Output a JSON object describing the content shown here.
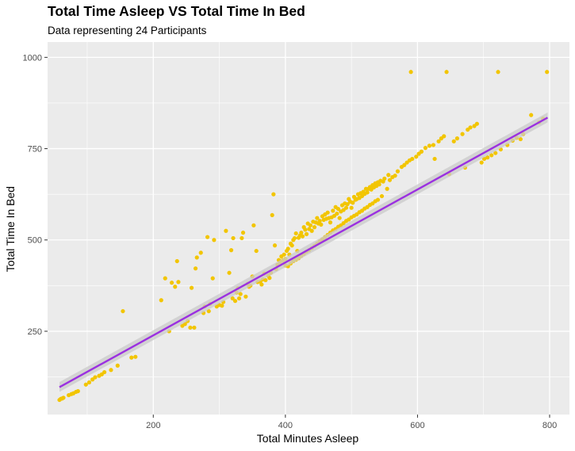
{
  "chart_data": {
    "type": "scatter",
    "title": "Total Time Asleep VS Total Time In Bed",
    "subtitle": "Data representing 24 Participants",
    "xlabel": "Total Minutes Asleep",
    "ylabel": "Total Time In Bed",
    "xlim": [
      40,
      830
    ],
    "ylim": [
      22,
      1042
    ],
    "x_ticks": [
      200,
      400,
      600,
      800
    ],
    "y_ticks": [
      250,
      500,
      750,
      1000
    ],
    "x_tick_labels": [
      "200",
      "400",
      "600",
      "800"
    ],
    "y_tick_labels": [
      "250",
      "500",
      "750",
      "1000"
    ],
    "grid": true,
    "legend": "none",
    "colors": {
      "panel": "#ebebeb",
      "grid": "#ffffff",
      "point": "#f2c500",
      "trend_line": "#9b30e0",
      "confidence_band": "#c9c9c9"
    },
    "trend_line": {
      "x": [
        58,
        797
      ],
      "y": [
        97,
        835
      ]
    },
    "confidence_band": {
      "x": [
        58,
        797
      ],
      "y_lower": [
        84,
        822
      ],
      "y_upper": [
        111,
        849
      ]
    },
    "points": [
      [
        58,
        62
      ],
      [
        60,
        65
      ],
      [
        62,
        66
      ],
      [
        64,
        68
      ],
      [
        72,
        75
      ],
      [
        76,
        78
      ],
      [
        79,
        80
      ],
      [
        83,
        84
      ],
      [
        86,
        86
      ],
      [
        98,
        104
      ],
      [
        103,
        110
      ],
      [
        108,
        118
      ],
      [
        112,
        124
      ],
      [
        118,
        128
      ],
      [
        122,
        132
      ],
      [
        126,
        138
      ],
      [
        136,
        144
      ],
      [
        146,
        156
      ],
      [
        154,
        305
      ],
      [
        167,
        178
      ],
      [
        173,
        180
      ],
      [
        212,
        335
      ],
      [
        218,
        395
      ],
      [
        224,
        250
      ],
      [
        228,
        383
      ],
      [
        233,
        372
      ],
      [
        236,
        442
      ],
      [
        238,
        385
      ],
      [
        244,
        265
      ],
      [
        248,
        270
      ],
      [
        252,
        278
      ],
      [
        256,
        260
      ],
      [
        258,
        369
      ],
      [
        262,
        260
      ],
      [
        264,
        422
      ],
      [
        266,
        452
      ],
      [
        272,
        465
      ],
      [
        276,
        300
      ],
      [
        278,
        318
      ],
      [
        282,
        508
      ],
      [
        284,
        305
      ],
      [
        286,
        325
      ],
      [
        290,
        395
      ],
      [
        292,
        500
      ],
      [
        296,
        318
      ],
      [
        300,
        322
      ],
      [
        304,
        320
      ],
      [
        306,
        330
      ],
      [
        310,
        525
      ],
      [
        315,
        410
      ],
      [
        318,
        472
      ],
      [
        320,
        340
      ],
      [
        321,
        505
      ],
      [
        324,
        333
      ],
      [
        326,
        356
      ],
      [
        328,
        368
      ],
      [
        330,
        340
      ],
      [
        332,
        352
      ],
      [
        334,
        505
      ],
      [
        336,
        520
      ],
      [
        340,
        345
      ],
      [
        343,
        380
      ],
      [
        345,
        372
      ],
      [
        347,
        375
      ],
      [
        350,
        400
      ],
      [
        352,
        540
      ],
      [
        356,
        470
      ],
      [
        358,
        385
      ],
      [
        362,
        386
      ],
      [
        364,
        378
      ],
      [
        366,
        392
      ],
      [
        368,
        408
      ],
      [
        370,
        390
      ],
      [
        374,
        402
      ],
      [
        376,
        396
      ],
      [
        378,
        410
      ],
      [
        380,
        568
      ],
      [
        382,
        625
      ],
      [
        384,
        485
      ],
      [
        386,
        420
      ],
      [
        388,
        432
      ],
      [
        390,
        445
      ],
      [
        392,
        440
      ],
      [
        394,
        455
      ],
      [
        396,
        444
      ],
      [
        398,
        460
      ],
      [
        400,
        448
      ],
      [
        402,
        470
      ],
      [
        404,
        476
      ],
      [
        406,
        460
      ],
      [
        408,
        490
      ],
      [
        410,
        485
      ],
      [
        412,
        500
      ],
      [
        414,
        505
      ],
      [
        416,
        518
      ],
      [
        418,
        470
      ],
      [
        420,
        506
      ],
      [
        422,
        512
      ],
      [
        424,
        520
      ],
      [
        426,
        510
      ],
      [
        428,
        535
      ],
      [
        430,
        528
      ],
      [
        432,
        516
      ],
      [
        434,
        545
      ],
      [
        436,
        530
      ],
      [
        438,
        540
      ],
      [
        440,
        525
      ],
      [
        442,
        550
      ],
      [
        444,
        535
      ],
      [
        446,
        548
      ],
      [
        448,
        560
      ],
      [
        450,
        545
      ],
      [
        452,
        552
      ],
      [
        454,
        542
      ],
      [
        456,
        565
      ],
      [
        458,
        555
      ],
      [
        460,
        570
      ],
      [
        462,
        558
      ],
      [
        464,
        575
      ],
      [
        466,
        560
      ],
      [
        468,
        548
      ],
      [
        470,
        562
      ],
      [
        472,
        580
      ],
      [
        474,
        566
      ],
      [
        476,
        590
      ],
      [
        478,
        572
      ],
      [
        480,
        585
      ],
      [
        482,
        560
      ],
      [
        484,
        578
      ],
      [
        486,
        595
      ],
      [
        488,
        582
      ],
      [
        490,
        600
      ],
      [
        492,
        588
      ],
      [
        494,
        598
      ],
      [
        496,
        612
      ],
      [
        498,
        605
      ],
      [
        500,
        588
      ],
      [
        502,
        602
      ],
      [
        504,
        618
      ],
      [
        506,
        610
      ],
      [
        508,
        612
      ],
      [
        510,
        625
      ],
      [
        512,
        615
      ],
      [
        514,
        628
      ],
      [
        516,
        620
      ],
      [
        518,
        632
      ],
      [
        520,
        626
      ],
      [
        522,
        640
      ],
      [
        524,
        630
      ],
      [
        526,
        640
      ],
      [
        528,
        645
      ],
      [
        530,
        638
      ],
      [
        532,
        650
      ],
      [
        534,
        644
      ],
      [
        536,
        655
      ],
      [
        538,
        648
      ],
      [
        540,
        658
      ],
      [
        542,
        652
      ],
      [
        544,
        662
      ],
      [
        546,
        620
      ],
      [
        548,
        660
      ],
      [
        550,
        668
      ],
      [
        554,
        640
      ],
      [
        556,
        678
      ],
      [
        558,
        664
      ],
      [
        562,
        672
      ],
      [
        566,
        676
      ],
      [
        570,
        688
      ],
      [
        576,
        700
      ],
      [
        580,
        705
      ],
      [
        584,
        712
      ],
      [
        588,
        718
      ],
      [
        590,
        960
      ],
      [
        592,
        722
      ],
      [
        598,
        728
      ],
      [
        602,
        736
      ],
      [
        606,
        742
      ],
      [
        612,
        752
      ],
      [
        618,
        758
      ],
      [
        624,
        760
      ],
      [
        626,
        722
      ],
      [
        632,
        770
      ],
      [
        636,
        778
      ],
      [
        640,
        784
      ],
      [
        644,
        960
      ],
      [
        648,
        680
      ],
      [
        655,
        770
      ],
      [
        660,
        778
      ],
      [
        668,
        790
      ],
      [
        672,
        698
      ],
      [
        676,
        802
      ],
      [
        680,
        808
      ],
      [
        686,
        812
      ],
      [
        690,
        818
      ],
      [
        697,
        712
      ],
      [
        701,
        722
      ],
      [
        706,
        726
      ],
      [
        712,
        732
      ],
      [
        718,
        738
      ],
      [
        722,
        960
      ],
      [
        726,
        748
      ],
      [
        736,
        760
      ],
      [
        744,
        772
      ],
      [
        750,
        780
      ],
      [
        756,
        776
      ],
      [
        760,
        790
      ],
      [
        772,
        842
      ],
      [
        784,
        822
      ],
      [
        790,
        832
      ],
      [
        796,
        960
      ],
      [
        400,
        430
      ],
      [
        404,
        428
      ],
      [
        408,
        436
      ],
      [
        412,
        442
      ],
      [
        416,
        446
      ],
      [
        420,
        450
      ],
      [
        424,
        456
      ],
      [
        428,
        462
      ],
      [
        432,
        468
      ],
      [
        436,
        472
      ],
      [
        440,
        478
      ],
      [
        444,
        484
      ],
      [
        448,
        490
      ],
      [
        452,
        496
      ],
      [
        456,
        502
      ],
      [
        460,
        508
      ],
      [
        464,
        514
      ],
      [
        468,
        520
      ],
      [
        472,
        526
      ],
      [
        476,
        530
      ],
      [
        480,
        536
      ],
      [
        484,
        540
      ],
      [
        488,
        546
      ],
      [
        492,
        552
      ],
      [
        496,
        556
      ],
      [
        500,
        562
      ],
      [
        504,
        566
      ],
      [
        508,
        570
      ],
      [
        512,
        576
      ],
      [
        516,
        580
      ],
      [
        520,
        586
      ],
      [
        524,
        590
      ],
      [
        528,
        596
      ],
      [
        532,
        600
      ],
      [
        536,
        606
      ],
      [
        540,
        610
      ]
    ]
  }
}
